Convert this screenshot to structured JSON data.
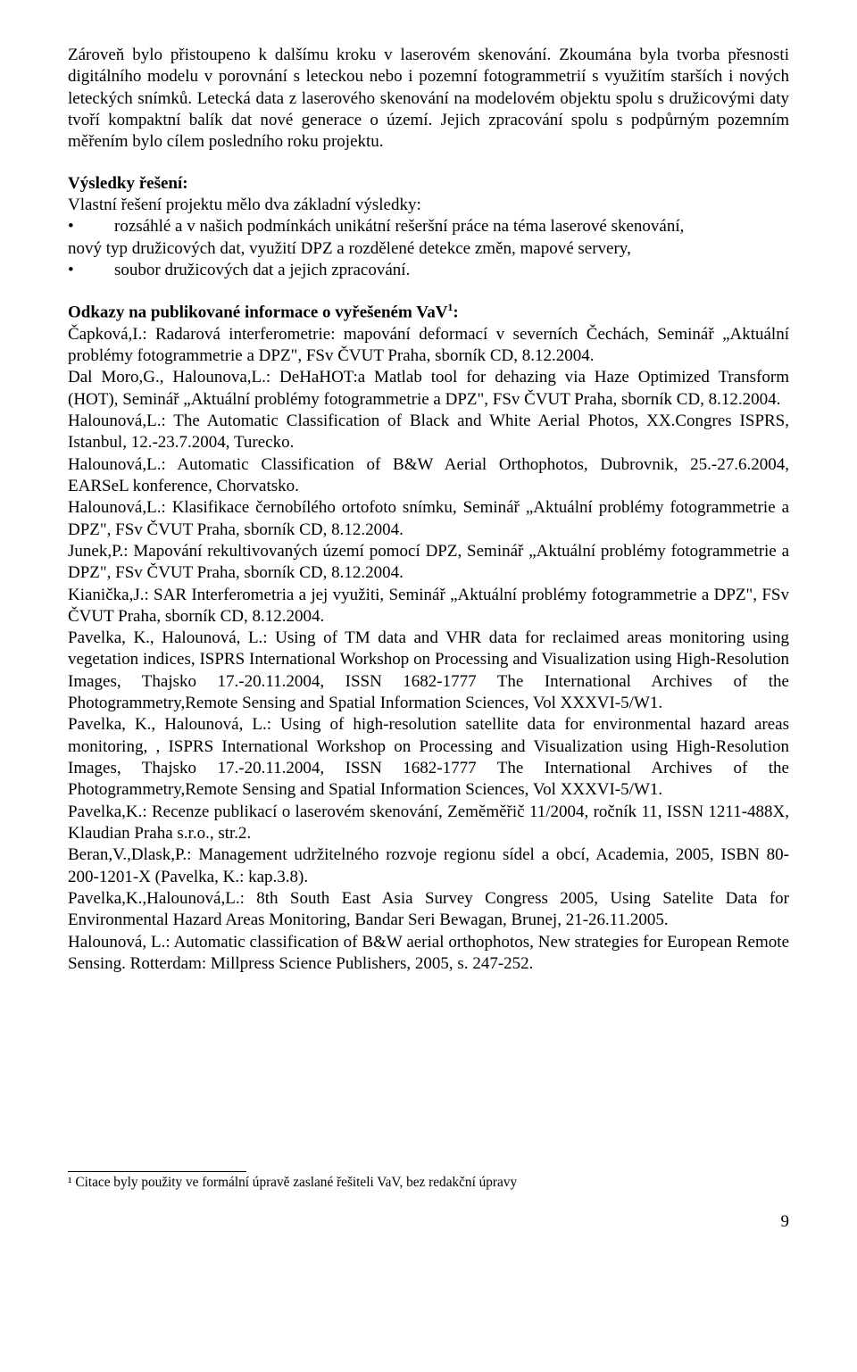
{
  "intro_para": "Zároveň bylo přistoupeno k dalšímu kroku v laserovém skenování. Zkoumána byla tvorba přesnosti digitálního modelu v porovnání s leteckou nebo i pozemní fotogrammetrií s využitím starších i nových leteckých snímků. Letecká data z laserového skenování na modelovém objektu spolu s družicovými daty tvoří kompaktní balík dat nové generace o území. Jejich zpracování spolu s podpůrným pozemním měřením bylo cílem posledního roku projektu.",
  "results": {
    "heading": "Výsledky řešení:",
    "lead": "Vlastní řešení projektu mělo dva základní výsledky:",
    "bullet1_indented": "rozsáhlé a v našich podmínkách unikátní rešeršní práce na téma laserové skenování,",
    "line1_cont": "nový typ družicových dat, využití DPZ a rozdělené detekce změn, mapové servery,",
    "bullet2": "soubor družicových dat a jejich zpracování."
  },
  "refs_heading_pre": "Odkazy na publikované informace o vyřešeném VaV",
  "refs_heading_sup": "1",
  "refs_heading_post": ":",
  "refs": [
    "Čapková,I.: Radarová interferometrie: mapování deformací v severních Čechách, Seminář „Aktuální  problémy fotogrammetrie a DPZ\", FSv ČVUT Praha, sborník CD, 8.12.2004.",
    "Dal Moro,G., Halounova,L.: DeHaHOT:a Matlab tool for dehazing via Haze Optimized Transform (HOT), Seminář „Aktuální  problémy fotogrammetrie a DPZ\", FSv ČVUT Praha, sborník CD, 8.12.2004.",
    "Halounová,L.: The Automatic Classification of Black and White Aerial Photos, XX.Congres ISPRS, Istanbul, 12.-23.7.2004, Turecko.",
    "Halounová,L.: Automatic Classification of B&W Aerial Orthophotos, Dubrovnik, 25.-27.6.2004, EARSeL konference, Chorvatsko.",
    "Halounová,L.: Klasifikace černobílého ortofoto snímku, Seminář „Aktuální  problémy fotogrammetrie a DPZ\", FSv ČVUT Praha, sborník CD, 8.12.2004.",
    "Junek,P.: Mapování rekultivovaných území pomocí DPZ, Seminář „Aktuální  problémy fotogrammetrie a DPZ\", FSv ČVUT Praha, sborník CD, 8.12.2004.",
    "Kianička,J.: SAR Interferometria a jej využiti, Seminář „Aktuální  problémy fotogrammetrie a DPZ\", FSv ČVUT Praha, sborník CD, 8.12.2004.",
    "Pavelka, K., Halounová, L.: Using of TM data and VHR data for reclaimed areas monitoring using vegetation indices, ISPRS International Workshop on Processing and Visualization using High-Resolution Images, Thajsko 17.-20.11.2004, ISSN 1682-1777 The International Archives of the Photogrammetry,Remote Sensing and Spatial Information Sciences, Vol XXXVI-5/W1.",
    "Pavelka, K., Halounová, L.: Using of high-resolution satellite data for environmental hazard areas monitoring, , ISPRS International Workshop on Processing and Visualization using High-Resolution Images, Thajsko 17.-20.11.2004, ISSN 1682-1777 The International Archives of the Photogrammetry,Remote Sensing and Spatial Information Sciences, Vol XXXVI-5/W1.",
    "Pavelka,K.: Recenze publikací o laserovém skenování, Zeměměřič 11/2004, ročník 11, ISSN 1211-488X, Klaudian Praha s.r.o., str.2.",
    "Beran,V.,Dlask,P.: Management udržitelného rozvoje regionu sídel a obcí, Academia, 2005, ISBN 80-200-1201-X  (Pavelka, K.: kap.3.8).",
    "Pavelka,K.,Halounová,L.: 8th South East Asia Survey Congress 2005, Using Satelite  Data for Environmental Hazard Areas Monitoring, Bandar Seri Bewagan, Brunej, 21-26.11.2005.",
    "Halounová, L.: Automatic classification of B&W aerial orthophotos, New strategies for European Remote Sensing. Rotterdam: Millpress Science Publishers, 2005, s. 247-252."
  ],
  "footnote": "¹ Citace byly použity ve formální úpravě zaslané řešiteli VaV, bez redakční úpravy",
  "page_number": "9"
}
